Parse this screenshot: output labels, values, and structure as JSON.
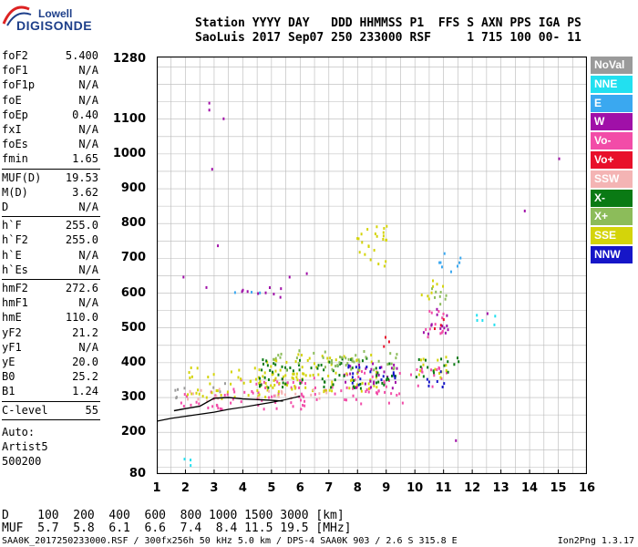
{
  "logo": {
    "line1": "Lowell",
    "line2": "DIGISONDE"
  },
  "header": {
    "labels": [
      "Station",
      "YYYY",
      "DAY",
      "DDD",
      "HHMMSS",
      "P1",
      "FFS",
      "S",
      "AXN",
      "PPS",
      "IGA",
      "PS"
    ],
    "values": [
      "SaoLuis",
      "2017",
      "Sep07",
      "250",
      "233000",
      "RSF",
      "",
      "1",
      "715",
      "100",
      "00-",
      "11"
    ]
  },
  "params_group1": [
    {
      "k": "foF2",
      "v": "5.400"
    },
    {
      "k": "foF1",
      "v": "N/A"
    },
    {
      "k": "foF1p",
      "v": "N/A"
    },
    {
      "k": "foE",
      "v": "N/A"
    },
    {
      "k": "foEp",
      "v": "0.40"
    },
    {
      "k": "fxI",
      "v": "N/A"
    },
    {
      "k": "foEs",
      "v": "N/A"
    },
    {
      "k": "fmin",
      "v": "1.65"
    }
  ],
  "params_group2": [
    {
      "k": "MUF(D)",
      "v": "19.53"
    },
    {
      "k": "M(D)",
      "v": "3.62"
    },
    {
      "k": "D",
      "v": "N/A"
    }
  ],
  "params_group3": [
    {
      "k": "h`F",
      "v": "255.0"
    },
    {
      "k": "h`F2",
      "v": "255.0"
    },
    {
      "k": "h`E",
      "v": "N/A"
    },
    {
      "k": "h`Es",
      "v": "N/A"
    }
  ],
  "params_group4": [
    {
      "k": "hmF2",
      "v": "272.6"
    },
    {
      "k": "hmF1",
      "v": "N/A"
    },
    {
      "k": "hmE",
      "v": "110.0"
    },
    {
      "k": "yF2",
      "v": "21.2"
    },
    {
      "k": "yF1",
      "v": "N/A"
    },
    {
      "k": "yE",
      "v": "20.0"
    },
    {
      "k": "B0",
      "v": "25.2"
    },
    {
      "k": "B1",
      "v": "1.24"
    }
  ],
  "clevel": {
    "k": "C-level",
    "v": "55"
  },
  "auto": [
    "Auto:",
    "Artist5",
    "500200"
  ],
  "legend": [
    {
      "label": "NoVal",
      "color": "#9a9a9a"
    },
    {
      "label": "NNE",
      "color": "#22e0f0"
    },
    {
      "label": "E",
      "color": "#3aa8f0"
    },
    {
      "label": "W",
      "color": "#a010a8"
    },
    {
      "label": "Vo-",
      "color": "#f24ca8"
    },
    {
      "label": "Vo+",
      "color": "#e8102a"
    },
    {
      "label": "SSW",
      "color": "#f4b4b4"
    },
    {
      "label": "X-",
      "color": "#0a7a14"
    },
    {
      "label": "X+",
      "color": "#8cbc5a"
    },
    {
      "label": "SSE",
      "color": "#d4d40a"
    },
    {
      "label": "NNW",
      "color": "#1616c8"
    }
  ],
  "muf_table": {
    "d_label": "D",
    "d_values": [
      "100",
      "200",
      "400",
      "600",
      "800",
      "1000",
      "1500",
      "3000"
    ],
    "d_unit": "[km]",
    "muf_label": "MUF",
    "muf_values": [
      "5.7",
      "5.8",
      "6.1",
      "6.6",
      "7.4",
      "8.4",
      "11.5",
      "19.5"
    ],
    "muf_unit": "[MHz]"
  },
  "footer": "SAA0K_2017250233000.RSF / 300fx256h 50 kHz 5.0 km / DPS-4 SAA0K 903 / 2.6 S 315.8 E",
  "version": "Ion2Png 1.3.17",
  "chart_data": {
    "type": "scatter",
    "title": "",
    "xlabel": "",
    "ylabel": "",
    "xlim": [
      1,
      16
    ],
    "ylim": [
      80,
      1280
    ],
    "x_ticks": [
      1,
      2,
      3,
      4,
      5,
      6,
      7,
      8,
      9,
      10,
      11,
      12,
      13,
      14,
      15,
      16
    ],
    "y_ticks": [
      80,
      200,
      300,
      400,
      500,
      600,
      700,
      800,
      900,
      1000,
      1100,
      1280
    ],
    "grid": true,
    "legend_position": "right",
    "series": [
      {
        "name": "Vo-",
        "color": "#f24ca8",
        "regions": [
          [
            1.6,
            3.6,
            260,
            320
          ],
          [
            3.6,
            7.2,
            270,
            360
          ],
          [
            7.3,
            9.6,
            285,
            380
          ],
          [
            9.8,
            11.2,
            330,
            390
          ],
          [
            10.3,
            11.1,
            470,
            560
          ]
        ]
      },
      {
        "name": "SSE",
        "color": "#d4d40a",
        "regions": [
          [
            2.0,
            5.8,
            300,
            390
          ],
          [
            4.5,
            8.8,
            320,
            430
          ],
          [
            9.9,
            11.2,
            360,
            420
          ],
          [
            10.2,
            11.0,
            580,
            640
          ],
          [
            7.8,
            9.0,
            680,
            800
          ]
        ]
      },
      {
        "name": "W",
        "color": "#a010a8",
        "regions": [
          [
            3.8,
            5.4,
            590,
            625
          ],
          [
            10.2,
            11.2,
            480,
            560
          ],
          [
            7.5,
            9.4,
            330,
            410
          ]
        ]
      },
      {
        "name": "X-",
        "color": "#0a7a14",
        "regions": [
          [
            4.5,
            9.4,
            330,
            420
          ],
          [
            10.0,
            11.5,
            360,
            420
          ]
        ]
      },
      {
        "name": "X+",
        "color": "#8cbc5a",
        "regions": [
          [
            5.0,
            9.5,
            380,
            440
          ],
          [
            10.4,
            11.2,
            560,
            620
          ]
        ]
      },
      {
        "name": "NNW",
        "color": "#1616c8",
        "regions": [
          [
            7.6,
            9.4,
            340,
            400
          ],
          [
            10.4,
            11.2,
            330,
            380
          ]
        ]
      },
      {
        "name": "SSW",
        "color": "#f4b4b4",
        "regions": [
          [
            1.7,
            3.2,
            290,
            330
          ],
          [
            4.0,
            7.0,
            300,
            330
          ]
        ]
      },
      {
        "name": "NNE",
        "color": "#22e0f0",
        "regions": [
          [
            12.0,
            12.8,
            510,
            545
          ],
          [
            1.6,
            2.2,
            100,
            130
          ]
        ]
      },
      {
        "name": "E",
        "color": "#3aa8f0",
        "regions": [
          [
            3.6,
            4.6,
            600,
            620
          ],
          [
            10.8,
            11.6,
            660,
            720
          ]
        ]
      },
      {
        "name": "NoVal",
        "color": "#9a9a9a",
        "regions": [
          [
            1.6,
            2.4,
            300,
            340
          ],
          [
            2.8,
            3.4,
            320,
            350
          ]
        ]
      },
      {
        "name": "Vo+",
        "color": "#e8102a",
        "regions": [
          [
            10.5,
            11.0,
            500,
            540
          ],
          [
            8.8,
            9.3,
            440,
            480
          ]
        ]
      }
    ],
    "profile_curve": {
      "x": [
        1.0,
        1.5,
        2.0,
        2.5,
        3.0,
        3.5,
        4.0,
        4.5,
        5.0,
        5.5,
        6.0
      ],
      "y": [
        232,
        240,
        246,
        252,
        258,
        266,
        272,
        279,
        286,
        294,
        304
      ]
    },
    "trace_curve": {
      "x": [
        1.6,
        2.0,
        2.5,
        3.0,
        3.5,
        4.0,
        4.5,
        5.0,
        5.4
      ],
      "y": [
        262,
        268,
        275,
        298,
        300,
        296,
        294,
        292,
        290
      ]
    }
  }
}
